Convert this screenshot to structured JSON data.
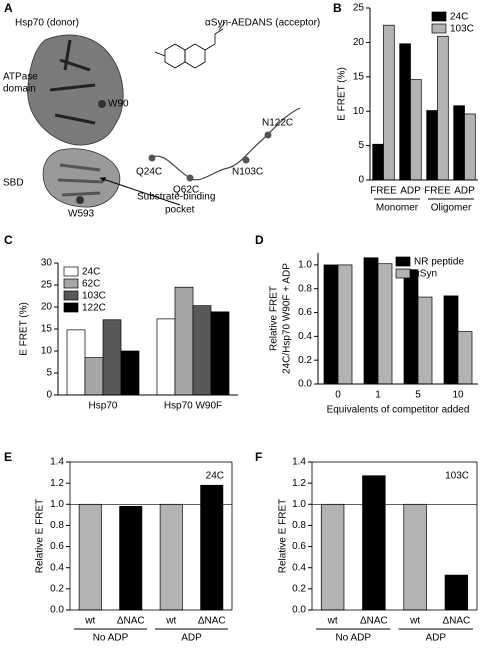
{
  "structure_panel": {
    "panel": "A",
    "donor": "Hsp70 (donor)",
    "acceptor": "αSyn-AEDANS (acceptor)",
    "atpase": [
      "ATPase",
      "domain"
    ],
    "w90": "W90",
    "n122c": "N122C",
    "q24c": "Q24C",
    "n103c": "N103C",
    "q62c": "Q62C",
    "sbd": "SBD",
    "w593": "W593",
    "pocket": [
      "Substrate-binding",
      "pocket"
    ]
  },
  "chart_data": [
    {
      "type": "bar",
      "panel": "B",
      "y_label": "E FRET (%)",
      "categories": [
        "FREE",
        "ADP",
        "FREE",
        "ADP"
      ],
      "groups": [
        "Monomer",
        "Oligomer"
      ],
      "series": [
        {
          "name": "24C",
          "color": "#000000",
          "values": [
            5.2,
            19.8,
            10.1,
            10.8
          ]
        },
        {
          "name": "103C",
          "color": "#b3b3b3",
          "values": [
            22.5,
            14.6,
            20.9,
            9.6
          ]
        }
      ],
      "ylim": [
        0,
        25
      ],
      "yticks": [
        0,
        5,
        10,
        15,
        20,
        25
      ],
      "legend": "upper right"
    },
    {
      "type": "bar",
      "panel": "C",
      "y_label": "E FRET (%)",
      "categories": [
        "Hsp70",
        "Hsp70 W90F"
      ],
      "series": [
        {
          "name": "24C",
          "color": "#ffffff",
          "values": [
            14.8,
            17.3
          ]
        },
        {
          "name": "62C",
          "color": "#a6a6a6",
          "values": [
            8.5,
            24.5
          ]
        },
        {
          "name": "103C",
          "color": "#595959",
          "values": [
            17.1,
            20.3
          ]
        },
        {
          "name": "122C",
          "color": "#000000",
          "values": [
            10.0,
            18.9
          ]
        }
      ],
      "ylim": [
        0,
        30
      ],
      "yticks": [
        0,
        5,
        10,
        15,
        20,
        25,
        30
      ],
      "legend": "upper left"
    },
    {
      "type": "bar",
      "panel": "D",
      "y_label": [
        "Relative FRET",
        "24C/Hsp70 W90F + ADP"
      ],
      "x_label": "Equivalents of competitor added",
      "categories": [
        "0",
        "1",
        "5",
        "10"
      ],
      "series": [
        {
          "name": "NR peptide",
          "color": "#000000",
          "values": [
            1.0,
            1.06,
            0.96,
            0.74
          ]
        },
        {
          "name": "αSyn",
          "color": "#b3b3b3",
          "values": [
            1.0,
            1.01,
            0.73,
            0.44
          ]
        }
      ],
      "ylim": [
        0,
        1.1
      ],
      "yticks": [
        {
          "value": 0,
          "label": "0.0"
        },
        0.2,
        0.4,
        0.6,
        0.8,
        {
          "value": 1,
          "label": "1.0"
        }
      ],
      "legend": "upper right"
    },
    {
      "type": "bar",
      "panel": "E",
      "y_label": "Relative E FRET",
      "annotation": "24C",
      "categories": [
        "wt",
        "ΔNAC",
        "wt",
        "ΔNAC"
      ],
      "groups": [
        "No ADP",
        "ADP"
      ],
      "values": [
        1.0,
        0.98,
        1.0,
        1.18
      ],
      "colors": [
        "#b3b3b3",
        "#000000",
        "#b3b3b3",
        "#000000"
      ],
      "ylim": [
        0,
        1.4
      ],
      "yticks": [
        {
          "value": 0,
          "label": "0.0"
        },
        0.2,
        0.4,
        0.6,
        0.8,
        {
          "value": 1,
          "label": "1.0"
        },
        1.2,
        1.4
      ],
      "ref_line": 1,
      "frame": true
    },
    {
      "type": "bar",
      "panel": "F",
      "y_label": "Relative E FRET",
      "annotation": "103C",
      "categories": [
        "wt",
        "ΔNAC",
        "wt",
        "ΔNAC"
      ],
      "groups": [
        "No ADP",
        "ADP"
      ],
      "values": [
        1.0,
        1.27,
        1.0,
        0.33
      ],
      "colors": [
        "#b3b3b3",
        "#000000",
        "#b3b3b3",
        "#000000"
      ],
      "ylim": [
        0,
        1.4
      ],
      "yticks": [
        {
          "value": 0,
          "label": "0.0"
        },
        0.2,
        0.4,
        0.6,
        0.8,
        {
          "value": 1,
          "label": "1.0"
        },
        1.2,
        1.4
      ],
      "ref_line": 1,
      "frame": true
    }
  ]
}
